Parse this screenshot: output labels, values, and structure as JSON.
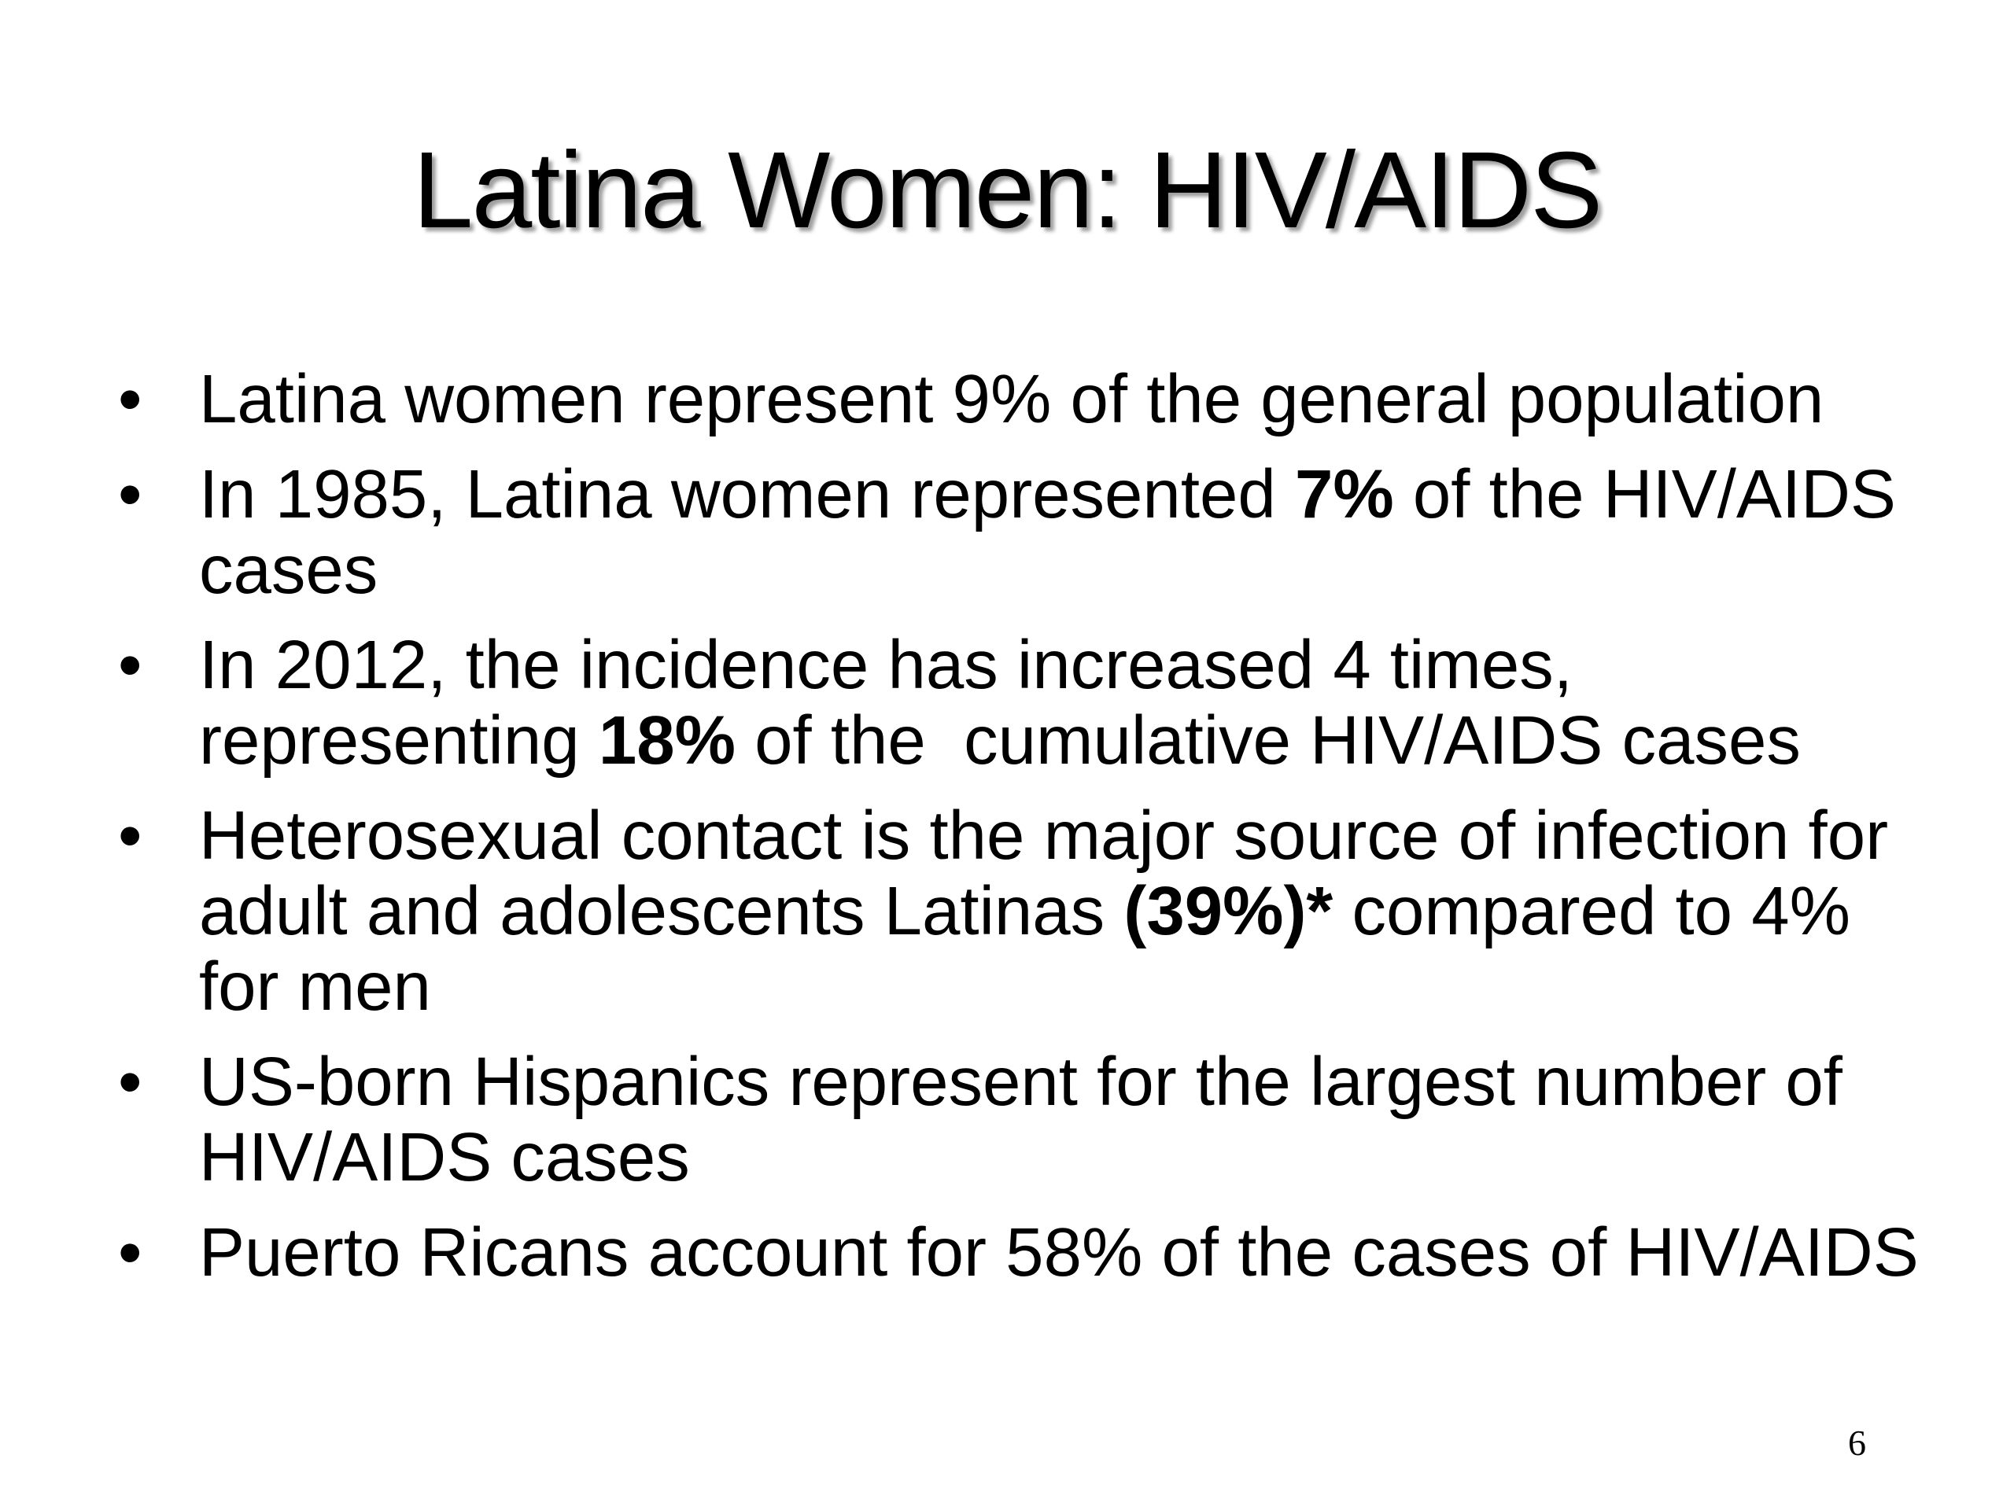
{
  "slide": {
    "title": "Latina Women: HIV/AIDS",
    "bullet_glyph": "•",
    "bullets": [
      {
        "text": "Latina women represent 9% of the general population"
      },
      {
        "pre": "In 1985, Latina women represented ",
        "bold": "7%",
        "post": " of the HIV/AIDS cases"
      },
      {
        "pre": "In 2012, the incidence has increased 4 times, representing ",
        "bold": "18%",
        "post": " of the  cumulative HIV/AIDS cases"
      },
      {
        "pre": "Heterosexual contact is the major source of infection for adult and adolescents Latinas ",
        "bold": "(39%)*",
        "post": " compared to 4% for men"
      },
      {
        "text": "US-born Hispanics represent for the largest number of HIV/AIDS cases"
      },
      {
        "text": "Puerto Ricans account for 58% of the cases of HIV/AIDS"
      }
    ],
    "page_number": "6"
  }
}
